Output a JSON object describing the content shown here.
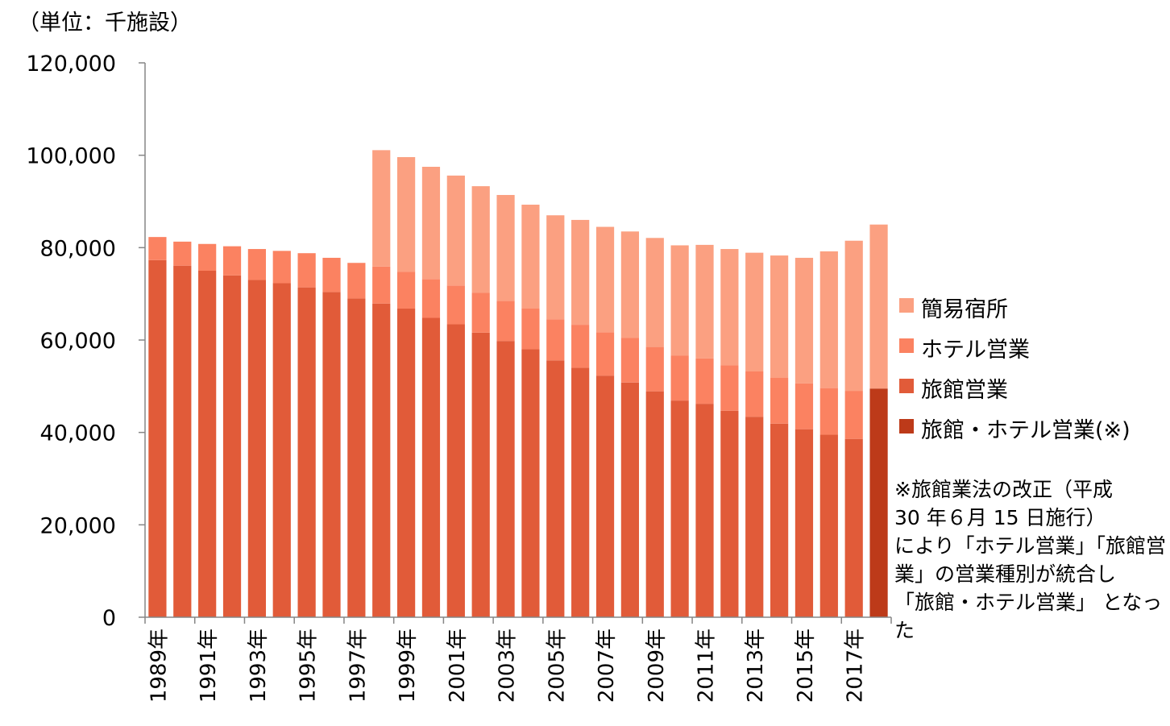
{
  "unit_label": "（単位：千施設）",
  "note_lines": [
    "※旅館業法の改正（平成",
    "30 年６月 15 日施行）",
    "により「ホテル営業」「旅館営",
    "業」の営業種別が統合し",
    "「旅館・ホテル営業」 となっ",
    "た"
  ],
  "colors": {
    "kani": "#FBA081",
    "hotel": "#FB8261",
    "ryokan": "#E15B39",
    "combined": "#BD3A19",
    "axis": "#868686"
  },
  "chart_data": {
    "type": "bar",
    "stacked": true,
    "title": "",
    "xlabel": "",
    "ylabel": "（単位：千施設）",
    "ylim": [
      0,
      120000
    ],
    "yticks": [
      0,
      20000,
      40000,
      60000,
      80000,
      100000,
      120000
    ],
    "ytick_labels": [
      "0",
      "20,000",
      "40,000",
      "60,000",
      "80,000",
      "100,000",
      "120,000"
    ],
    "grid": false,
    "legend_position": "right",
    "categories": [
      "1989年",
      "1990年",
      "1991年",
      "1992年",
      "1993年",
      "1994年",
      "1995年",
      "1996年",
      "1997年",
      "1998年",
      "1999年",
      "2000年",
      "2001年",
      "2002年",
      "2003年",
      "2004年",
      "2005年",
      "2006年",
      "2007年",
      "2008年",
      "2009年",
      "2010年",
      "2011年",
      "2012年",
      "2013年",
      "2014年",
      "2015年",
      "2016年",
      "2017年",
      "2018年"
    ],
    "tick_labels_shown": [
      "1989年",
      "1991年",
      "1993年",
      "1995年",
      "1997年",
      "1999年",
      "2001年",
      "2003年",
      "2005年",
      "2007年",
      "2009年",
      "2011年",
      "2013年",
      "2015年",
      "2017年"
    ],
    "series": [
      {
        "name": "旅館・ホテル営業(※)",
        "color_key": "combined",
        "values": [
          null,
          null,
          null,
          null,
          null,
          null,
          null,
          null,
          null,
          null,
          null,
          null,
          null,
          null,
          null,
          null,
          null,
          null,
          null,
          null,
          null,
          null,
          null,
          null,
          null,
          null,
          null,
          null,
          null,
          49500
        ]
      },
      {
        "name": "旅館営業",
        "color_key": "ryokan",
        "values": [
          77300,
          76100,
          75000,
          74000,
          73000,
          72300,
          71400,
          70400,
          69000,
          67900,
          66800,
          64800,
          63400,
          61600,
          59800,
          58000,
          55600,
          54000,
          52300,
          50800,
          48900,
          46900,
          46200,
          44700,
          43400,
          41900,
          40700,
          39500,
          38600,
          null
        ]
      },
      {
        "name": "ホテル営業",
        "color_key": "hotel",
        "values": [
          5000,
          5200,
          5800,
          6300,
          6700,
          7000,
          7400,
          7400,
          7700,
          8000,
          8000,
          8400,
          8400,
          8600,
          8700,
          8800,
          8900,
          9300,
          9400,
          9700,
          9600,
          9700,
          9800,
          9800,
          9800,
          9900,
          9900,
          10100,
          10400,
          null
        ]
      },
      {
        "name": "簡易宿所",
        "color_key": "kani",
        "values": [
          null,
          null,
          null,
          null,
          null,
          null,
          null,
          null,
          null,
          25200,
          24800,
          24300,
          23800,
          23100,
          22900,
          22500,
          22500,
          22700,
          22800,
          23000,
          23600,
          23900,
          24600,
          25200,
          25700,
          26500,
          27200,
          29600,
          32500,
          35500
        ]
      }
    ]
  }
}
